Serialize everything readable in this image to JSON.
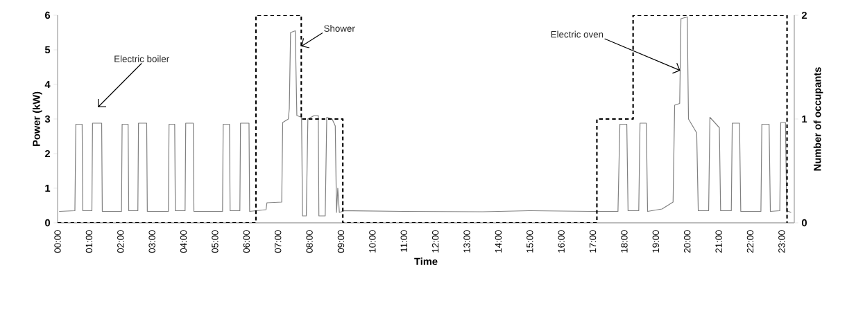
{
  "chart_data": {
    "type": "line",
    "xlabel": "Time",
    "ylabel": "Power (kW)",
    "y2label": "Number of occupants",
    "xlim": [
      0,
      23.4
    ],
    "ylim": [
      0,
      6
    ],
    "y2lim": [
      0,
      2
    ],
    "xticks": [
      {
        "value": 0,
        "label": "00:00"
      },
      {
        "value": 1,
        "label": "01:00"
      },
      {
        "value": 2,
        "label": "02:00"
      },
      {
        "value": 3,
        "label": "03:00"
      },
      {
        "value": 4,
        "label": "04:00"
      },
      {
        "value": 5,
        "label": "05:00"
      },
      {
        "value": 6,
        "label": "06:00"
      },
      {
        "value": 7,
        "label": "07:00"
      },
      {
        "value": 8,
        "label": "08:00"
      },
      {
        "value": 9,
        "label": "09:00"
      },
      {
        "value": 10,
        "label": "10:00"
      },
      {
        "value": 11,
        "label": "11:00"
      },
      {
        "value": 12,
        "label": "12:00"
      },
      {
        "value": 13,
        "label": "13:00"
      },
      {
        "value": 14,
        "label": "14:00"
      },
      {
        "value": 15,
        "label": "15:00"
      },
      {
        "value": 16,
        "label": "16:00"
      },
      {
        "value": 17,
        "label": "17:00"
      },
      {
        "value": 18,
        "label": "18:00"
      },
      {
        "value": 19,
        "label": "19:00"
      },
      {
        "value": 20,
        "label": "20:00"
      },
      {
        "value": 21,
        "label": "21:00"
      },
      {
        "value": 22,
        "label": "22:00"
      },
      {
        "value": 23,
        "label": "23:00"
      }
    ],
    "yticks": [
      0,
      1,
      2,
      3,
      4,
      5,
      6
    ],
    "y2ticks": [
      0,
      1,
      2
    ],
    "grid": false,
    "legend": false,
    "series": [
      {
        "color": "#808080",
        "line_style": "solid",
        "x": [
          0.05,
          0.55,
          0.58,
          0.78,
          0.8,
          1.09,
          1.11,
          1.4,
          1.42,
          2.03,
          2.05,
          2.24,
          2.26,
          2.55,
          2.57,
          2.83,
          2.85,
          3.52,
          3.54,
          3.72,
          3.74,
          4.05,
          4.07,
          4.31,
          4.33,
          5.24,
          5.26,
          5.46,
          5.48,
          5.79,
          5.81,
          6.08,
          6.1,
          6.62,
          6.65,
          7.12,
          7.15,
          7.33,
          7.36,
          7.4,
          7.55,
          7.6,
          7.75,
          7.78,
          7.9,
          7.95,
          8.15,
          8.28,
          8.3,
          8.5,
          8.55,
          8.72,
          8.82,
          8.86,
          8.9,
          8.95,
          9.1,
          11.0,
          13.5,
          15.0,
          17.0,
          17.8,
          17.86,
          18.08,
          18.12,
          18.46,
          18.5,
          18.7,
          18.74,
          19.2,
          19.55,
          19.6,
          19.76,
          19.8,
          20.0,
          20.04,
          20.3,
          20.35,
          20.68,
          20.72,
          21.02,
          21.06,
          21.4,
          21.43,
          21.66,
          21.7,
          22.34,
          22.37,
          22.6,
          22.64,
          22.94,
          22.97,
          23.12,
          23.16,
          23.3
        ],
        "values": [
          0.33,
          0.35,
          2.85,
          2.85,
          0.35,
          0.35,
          2.88,
          2.88,
          0.33,
          0.33,
          2.85,
          2.85,
          0.35,
          0.35,
          2.88,
          2.88,
          0.33,
          0.33,
          2.85,
          2.85,
          0.35,
          0.35,
          2.88,
          2.88,
          0.33,
          0.33,
          2.85,
          2.85,
          0.35,
          0.35,
          2.88,
          2.88,
          0.33,
          0.38,
          0.58,
          0.6,
          2.9,
          3.0,
          3.3,
          5.5,
          5.55,
          3.1,
          3.05,
          0.2,
          0.2,
          3.0,
          3.1,
          3.1,
          0.2,
          0.2,
          3.05,
          3.0,
          2.8,
          0.3,
          1.0,
          0.3,
          0.35,
          0.33,
          0.32,
          0.35,
          0.33,
          0.33,
          2.85,
          2.85,
          0.35,
          0.35,
          2.88,
          2.88,
          0.33,
          0.4,
          0.6,
          3.4,
          3.45,
          5.9,
          5.95,
          3.0,
          2.6,
          0.35,
          0.35,
          3.05,
          2.75,
          0.35,
          0.35,
          2.88,
          2.88,
          0.33,
          0.33,
          2.85,
          2.85,
          0.33,
          0.35,
          2.9,
          2.9,
          0.35,
          0.3
        ]
      },
      {
        "type": "step",
        "axis": "y2",
        "color": "#000000",
        "line_style": "dashed",
        "x": [
          0,
          6.3,
          7.74,
          9.06,
          17.13,
          18.28,
          23.17
        ],
        "values": [
          0,
          2,
          1,
          0,
          1,
          2,
          0
        ]
      }
    ],
    "annotations": [
      "Electric boiler",
      {
        "text": "Shower",
        "x": 7.74,
        "y": 5.1
      },
      {
        "text": "Electric oven",
        "x": 19.78,
        "y": 4.4
      }
    ]
  }
}
